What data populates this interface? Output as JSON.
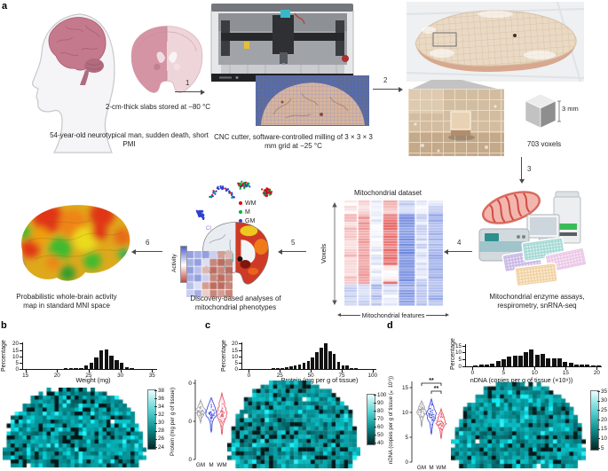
{
  "figure_labels": {
    "a": "a",
    "b": "b",
    "c": "c",
    "d": "d"
  },
  "panel_a": {
    "steps": [
      "1",
      "2",
      "3",
      "4",
      "5",
      "6"
    ],
    "donor_caption": "54-year-old neurotypical man, sudden death, short PMI",
    "slabs_caption": "2-cm-thick slabs stored at −80 °C",
    "cnc_caption": "CNC cutter, software-controlled milling of 3 × 3 × 3 mm grid at −25 °C",
    "cube_label": "3 mm",
    "voxel_count_label": "703 voxels",
    "assays_caption": "Mitochondrial enzyme assays, respirometry, snRNA-seq",
    "dataset": {
      "title": "Mitochondrial dataset",
      "ylabel": "Voxels",
      "xlabel": "Mitochondrial features"
    },
    "umap": {
      "legend": [
        {
          "label": "WM",
          "color": "#e8000b"
        },
        {
          "label": "M",
          "color": "#00b34a"
        },
        {
          "label": "GM",
          "color": "#2f3fd3"
        }
      ],
      "annotation": "CI"
    },
    "activity_colorbar_label": "Activity",
    "discovery_caption": "Discovery-based analyses of mitochondrial phenotypes",
    "mni_caption": "Probabilistic whole-brain activity map in standard MNI space"
  },
  "chart_data": [
    {
      "id": "weight_histogram",
      "panel": "b",
      "type": "bar",
      "xlabel": "Weight (mg)",
      "ylabel": "Percentage",
      "xlim": [
        14.5,
        35.8
      ],
      "ylim": [
        0,
        20
      ],
      "xticks": [
        15,
        20,
        25,
        30,
        35
      ],
      "yticks": [
        0,
        5,
        10,
        15,
        20
      ],
      "x": [
        16,
        18.3,
        19.1,
        21.4,
        22.2,
        23.0,
        23.8,
        24.6,
        25.4,
        26.2,
        27.0,
        27.8,
        28.6,
        29.4,
        30.2,
        31.0,
        31.8
      ],
      "values": [
        0.3,
        0.3,
        0.3,
        0.5,
        0.6,
        0.7,
        1.0,
        2.5,
        5.0,
        9.0,
        15.0,
        15.5,
        10.5,
        7.0,
        5.0,
        1.5,
        0.5
      ],
      "bar_color": "#111111"
    },
    {
      "id": "weight_map",
      "panel": "b",
      "type": "heatmap",
      "description": "Voxel-wise weight map of coronal brain slab",
      "colormap": "black-to-cyan",
      "colormap_low": "#021c1c",
      "colormap_high": "#e8fdfd",
      "colorbar_ticks": [
        38,
        36,
        34,
        32,
        30,
        28,
        26,
        24
      ],
      "value_range": [
        24,
        38
      ]
    },
    {
      "id": "protein_histogram",
      "panel": "c",
      "type": "bar",
      "xlabel": "Protein (mg per g of tissue)",
      "ylabel": "Percentage",
      "xlim": [
        -6,
        103
      ],
      "ylim": [
        0,
        20
      ],
      "xticks": [
        0,
        25,
        50,
        75,
        100
      ],
      "yticks": [
        0,
        5,
        10,
        15,
        20
      ],
      "x": [
        20,
        23.5,
        27,
        30.5,
        34,
        37.5,
        41,
        44.5,
        48,
        51.5,
        55,
        58.5,
        62,
        65.5,
        69,
        72.5,
        76,
        79.5,
        83,
        86.5,
        93.5
      ],
      "values": [
        0.4,
        0.8,
        1.0,
        1.5,
        2.0,
        2.5,
        3.5,
        5.0,
        6.5,
        9.0,
        13.0,
        17.0,
        20.0,
        14.0,
        12.0,
        5.5,
        3.0,
        2.5,
        1.0,
        0.6,
        0.3
      ],
      "bar_color": "#111111"
    },
    {
      "id": "protein_violin",
      "panel": "c",
      "type": "violin",
      "ylabel": "Protein (mg per g of tissue)",
      "ylim": [
        0,
        110
      ],
      "yticks": [
        0,
        50,
        100
      ],
      "categories": [
        "GM",
        "M",
        "WM"
      ],
      "series": [
        {
          "name": "GM",
          "color": "#a0a0a0",
          "median": 63,
          "min": 49,
          "max": 77
        },
        {
          "name": "M",
          "color": "#4753e0",
          "median": 61,
          "min": 37,
          "max": 80
        },
        {
          "name": "WM",
          "color": "#e8596a",
          "median": 60,
          "min": 34,
          "max": 86
        }
      ]
    },
    {
      "id": "protein_map",
      "panel": "c",
      "type": "heatmap",
      "description": "Voxel-wise protein map of coronal brain slab",
      "colormap": "black-to-cyan",
      "colorbar_ticks": [
        100,
        90,
        80,
        70,
        60,
        50,
        40
      ],
      "value_range": [
        40,
        100
      ]
    },
    {
      "id": "ndna_histogram",
      "panel": "d",
      "type": "bar",
      "xlabel": "nDNA (copies per g of tissue (×10⁹))",
      "ylabel": "Percentage",
      "xlim": [
        -1.2,
        20.8
      ],
      "ylim": [
        0,
        15
      ],
      "xticks": [
        0,
        5,
        10,
        15,
        20
      ],
      "yticks": [
        0,
        5,
        10,
        15
      ],
      "x": [
        0.5,
        1.4,
        2.3,
        3.2,
        4.1,
        5.0,
        5.9,
        6.8,
        7.7,
        8.6,
        9.5,
        10.4,
        11.3,
        12.2,
        13.1,
        14.0,
        14.9,
        15.8,
        16.7,
        17.6,
        18.5,
        19.4,
        20.3
      ],
      "values": [
        0.5,
        1.0,
        1.2,
        2.0,
        4.0,
        5.0,
        7.0,
        8.0,
        8.0,
        10.5,
        12.0,
        8.5,
        9.0,
        5.5,
        6.0,
        6.0,
        3.0,
        2.5,
        1.5,
        1.0,
        1.0,
        0.5,
        0.4
      ],
      "bar_color": "#111111"
    },
    {
      "id": "ndna_violin",
      "panel": "d",
      "type": "violin",
      "ylabel": "nDNA (copies per g of tissue (×10⁹))",
      "ylim": [
        0,
        16
      ],
      "yticks": [
        0,
        5,
        10,
        15
      ],
      "categories": [
        "GM",
        "M",
        "WM"
      ],
      "series": [
        {
          "name": "GM",
          "color": "#a0a0a0",
          "median": 10.1,
          "min": 7.3,
          "max": 12.2
        },
        {
          "name": "M",
          "color": "#4753e0",
          "median": 9.4,
          "min": 5.8,
          "max": 12.6
        },
        {
          "name": "WM",
          "color": "#e8596a",
          "median": 7.9,
          "min": 4.9,
          "max": 10.6
        }
      ],
      "significance": [
        {
          "groups": [
            "GM",
            "WM"
          ],
          "label": "**"
        },
        {
          "groups": [
            "M",
            "WM"
          ],
          "label": "**"
        }
      ]
    },
    {
      "id": "ndna_map",
      "panel": "d",
      "type": "heatmap",
      "description": "Voxel-wise nDNA map of coronal brain slab",
      "colormap": "black-to-cyan",
      "colorbar_ticks": [
        35,
        30,
        25,
        20,
        15,
        10,
        5
      ],
      "value_range": [
        2,
        35
      ]
    },
    {
      "id": "mito_dataset",
      "panel": "a",
      "type": "heatmap",
      "title": "Mitochondrial dataset",
      "xlabel": "Mitochondrial features",
      "ylabel": "Voxels",
      "colormap": "blue-white-red"
    },
    {
      "id": "umap",
      "panel": "a",
      "type": "scatter",
      "legend": [
        {
          "label": "WM",
          "color": "#e8000b"
        },
        {
          "label": "M",
          "color": "#00b34a"
        },
        {
          "label": "GM",
          "color": "#2f3fd3"
        }
      ],
      "annotation": "CI"
    },
    {
      "id": "discovery_inset_heatmap",
      "panel": "a",
      "type": "heatmap",
      "colormap": "blue-white-red",
      "matrix": [
        [
          -0.6,
          -0.5,
          -0.6,
          -0.3,
          0.4,
          0.3
        ],
        [
          -0.5,
          -0.6,
          -0.2,
          0.5,
          0.6,
          0.5
        ],
        [
          -0.6,
          -0.4,
          0.3,
          0.6,
          0.5,
          0.6
        ],
        [
          -0.5,
          -0.6,
          -0.3,
          0.5,
          0.6,
          0.5
        ],
        [
          -0.4,
          -0.2,
          0.4,
          0.6,
          0.6,
          0.5
        ],
        [
          -0.3,
          -0.5,
          0.2,
          0.5,
          0.4,
          0.5
        ]
      ]
    }
  ]
}
